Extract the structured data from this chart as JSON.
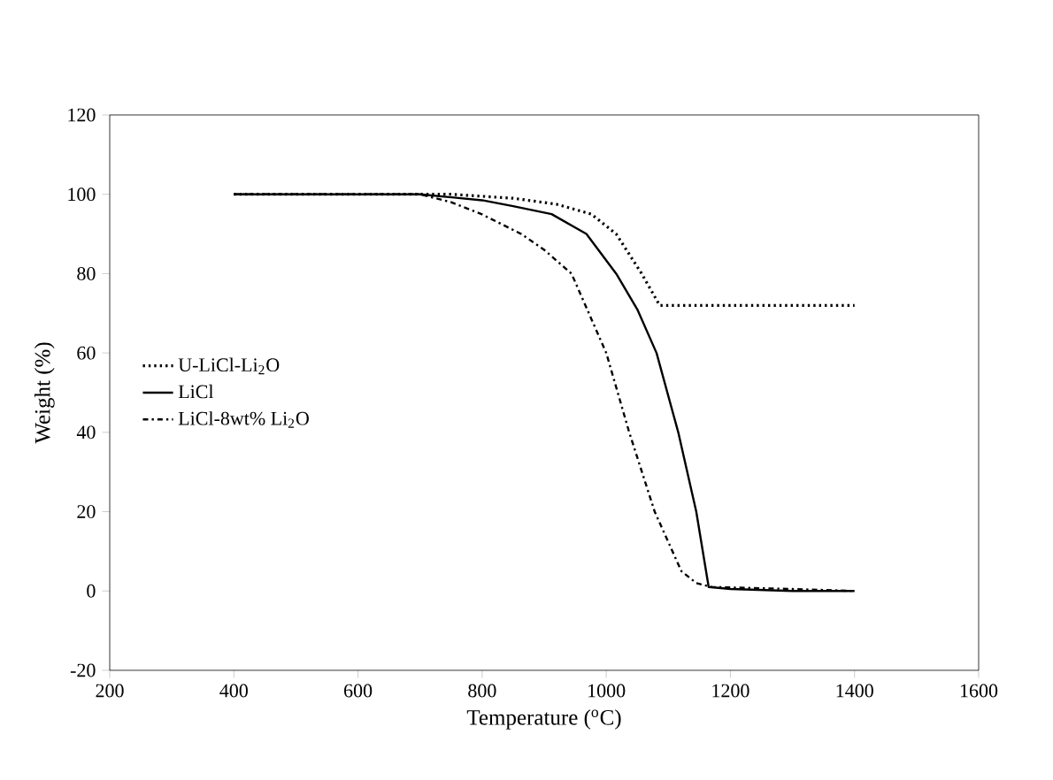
{
  "chart_data": {
    "type": "line",
    "xlabel": "Temperature ($^{o}$C)",
    "ylabel": "Weight (%)",
    "xlim": [
      200,
      1600
    ],
    "xticks": [
      200,
      400,
      600,
      800,
      1000,
      1200,
      1400,
      1600
    ],
    "ylim": [
      -20,
      120
    ],
    "yticks": [
      -20,
      0,
      20,
      40,
      60,
      80,
      100,
      120
    ],
    "grid": false,
    "legend": "left",
    "marker": "none",
    "series": [
      {
        "name": "U-LiCl-Li$_{2}$O",
        "color": "#000000",
        "line_style": "dotted",
        "x": [
          400,
          600,
          750,
          850,
          920,
          976,
          1016,
          1057,
          1086,
          1200,
          1400
        ],
        "values": [
          100,
          100,
          100,
          99,
          97.5,
          95,
          90,
          80,
          72,
          72,
          72
        ]
      },
      {
        "name": "LiCl",
        "color": "#000000",
        "line_style": "solid",
        "x": [
          400,
          700,
          800,
          850,
          912,
          968,
          1016,
          1050,
          1081,
          1116,
          1145,
          1165,
          1200,
          1300,
          1400
        ],
        "values": [
          100,
          100,
          98.5,
          97,
          95,
          90,
          80,
          71,
          60,
          40,
          20,
          1,
          0.5,
          0,
          0
        ]
      },
      {
        "name": "LiCl-8wt% Li$_{2}$O",
        "color": "#000000",
        "line_style": "dashdot",
        "x": [
          400,
          700,
          750,
          799,
          863,
          900,
          944,
          1000,
          1037,
          1078,
          1121,
          1145,
          1170,
          1300,
          1400
        ],
        "values": [
          100,
          100,
          98,
          95,
          90,
          86,
          80,
          60,
          40,
          20,
          5,
          2,
          1,
          0.5,
          0
        ]
      }
    ]
  }
}
